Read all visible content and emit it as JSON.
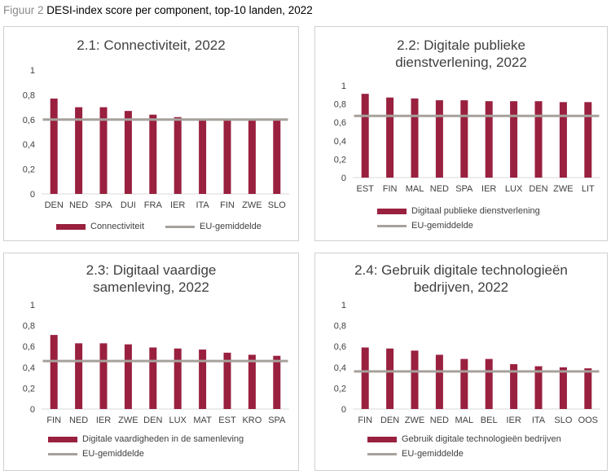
{
  "figure": {
    "prefix": "Figuur 2",
    "title": "DESI-index score per component, top-10 landen, 2022"
  },
  "colors": {
    "bar": "#99203f",
    "avg": "#a6a19b",
    "axis": "#d9d9d9"
  },
  "chart_data": [
    {
      "type": "bar",
      "title_lines": [
        "2.1: Connectiviteit, 2022"
      ],
      "categories": [
        "DEN",
        "NED",
        "SPA",
        "DUI",
        "FRA",
        "IER",
        "ITA",
        "FIN",
        "ZWE",
        "SLO"
      ],
      "series": [
        {
          "name": "Connectiviteit",
          "values": [
            0.77,
            0.7,
            0.7,
            0.67,
            0.64,
            0.62,
            0.6,
            0.6,
            0.6,
            0.6
          ]
        },
        {
          "name": "EU-gemiddelde",
          "type": "line",
          "values": [
            0.6,
            0.6,
            0.6,
            0.6,
            0.6,
            0.6,
            0.6,
            0.6,
            0.6,
            0.6
          ]
        }
      ],
      "ylim": [
        0,
        1
      ],
      "yticks": [
        "0",
        "0,2",
        "0,4",
        "0,6",
        "0,8",
        "1"
      ],
      "legend_position": "bottom"
    },
    {
      "type": "bar",
      "title_lines": [
        "2.2: Digitale publieke",
        "dienstverlening, 2022"
      ],
      "categories": [
        "EST",
        "FIN",
        "MAL",
        "NED",
        "SPA",
        "IER",
        "LUX",
        "DEN",
        "ZWE",
        "LIT"
      ],
      "series": [
        {
          "name": "Digitaal publieke dienstverlening",
          "values": [
            0.91,
            0.87,
            0.86,
            0.84,
            0.84,
            0.83,
            0.83,
            0.83,
            0.82,
            0.82
          ]
        },
        {
          "name": "EU-gemiddelde",
          "type": "line",
          "values": [
            0.67,
            0.67,
            0.67,
            0.67,
            0.67,
            0.67,
            0.67,
            0.67,
            0.67,
            0.67
          ]
        }
      ],
      "ylim": [
        0,
        1
      ],
      "yticks": [
        "0",
        "0,2",
        "0,4",
        "0,6",
        "0,8",
        "1"
      ],
      "legend_position": "bottom"
    },
    {
      "type": "bar",
      "title_lines": [
        "2.3: Digitaal vaardige",
        "samenleving, 2022"
      ],
      "categories": [
        "FIN",
        "NED",
        "IER",
        "ZWE",
        "DEN",
        "LUX",
        "MAT",
        "EST",
        "KRO",
        "SPA"
      ],
      "series": [
        {
          "name": "Digitale vaardigheden in de samenleving",
          "values": [
            0.71,
            0.63,
            0.63,
            0.62,
            0.59,
            0.58,
            0.57,
            0.54,
            0.52,
            0.51
          ]
        },
        {
          "name": "EU-gemiddelde",
          "type": "line",
          "values": [
            0.46,
            0.46,
            0.46,
            0.46,
            0.46,
            0.46,
            0.46,
            0.46,
            0.46,
            0.46
          ]
        }
      ],
      "ylim": [
        0,
        1
      ],
      "yticks": [
        "0",
        "0,2",
        "0,4",
        "0,6",
        "0,8",
        "1"
      ],
      "legend_position": "bottom"
    },
    {
      "type": "bar",
      "title_lines": [
        "2.4: Gebruik digitale technologieën",
        "bedrijven, 2022"
      ],
      "categories": [
        "FIN",
        "DEN",
        "ZWE",
        "NED",
        "MAL",
        "BEL",
        "IER",
        "ITA",
        "SLO",
        "OOS"
      ],
      "series": [
        {
          "name": "Gebruik digitale technologieën bedrijven",
          "values": [
            0.59,
            0.58,
            0.56,
            0.52,
            0.48,
            0.48,
            0.43,
            0.41,
            0.4,
            0.39
          ]
        },
        {
          "name": "EU-gemiddelde",
          "type": "line",
          "values": [
            0.36,
            0.36,
            0.36,
            0.36,
            0.36,
            0.36,
            0.36,
            0.36,
            0.36,
            0.36
          ]
        }
      ],
      "ylim": [
        0,
        1
      ],
      "yticks": [
        "0",
        "0,2",
        "0,4",
        "0,6",
        "0,8",
        "1"
      ],
      "legend_position": "bottom"
    }
  ]
}
